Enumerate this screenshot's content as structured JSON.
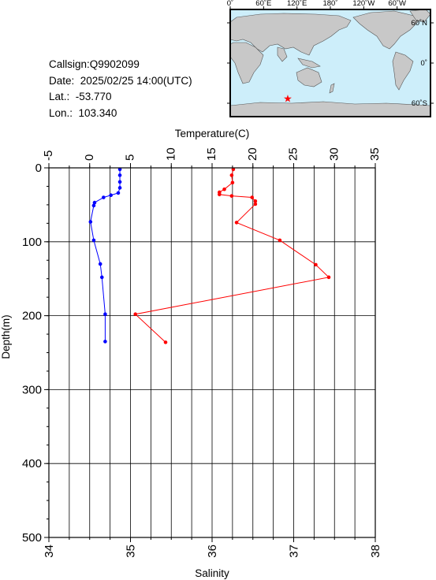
{
  "info": {
    "callsign": "Callsign:Q9902099",
    "date": "Date:  2025/02/25 14:00(UTC)",
    "lat": "Lat.:  -53.770",
    "lon": "Lon.:  103.340"
  },
  "map": {
    "lon_labels": [
      "0˚",
      "60˚E",
      "120˚E",
      "180˚",
      "120˚W",
      "60˚W"
    ],
    "lat_labels": [
      "60˚N",
      "0˚",
      "60˚S"
    ],
    "station": {
      "lat": -53.77,
      "lon": 103.34
    },
    "colors": {
      "ocean": "#cdeefa",
      "land": "#c8c8c8",
      "marker": "#ff0000"
    }
  },
  "chart_data": {
    "type": "line",
    "title": "",
    "xlabel_top": "Temperature(C)",
    "xlabel_bottom": "Salinity",
    "ylabel": "Depth(m)",
    "temperature_axis": {
      "range": [
        -5,
        35
      ],
      "ticks": [
        "-5",
        "0",
        "5",
        "10",
        "15",
        "20",
        "25",
        "30",
        "35"
      ]
    },
    "salinity_axis": {
      "range": [
        34,
        38
      ],
      "ticks": [
        "34",
        "35",
        "36",
        "37",
        "38"
      ]
    },
    "depth_axis": {
      "range": [
        0,
        500
      ],
      "reversed": true,
      "ticks": [
        "0",
        "100",
        "200",
        "300",
        "400",
        "500"
      ]
    },
    "grid": true,
    "series": [
      {
        "key": "temperature",
        "color": "#ff0000",
        "axis": "temperature",
        "points": [
          {
            "value": 17.6,
            "depth": 2
          },
          {
            "value": 17.4,
            "depth": 10
          },
          {
            "value": 17.5,
            "depth": 20
          },
          {
            "value": 16.5,
            "depth": 29
          },
          {
            "value": 15.9,
            "depth": 33
          },
          {
            "value": 15.9,
            "depth": 36
          },
          {
            "value": 17.4,
            "depth": 38
          },
          {
            "value": 19.9,
            "depth": 40
          },
          {
            "value": 20.3,
            "depth": 45
          },
          {
            "value": 20.3,
            "depth": 49
          },
          {
            "value": 18.0,
            "depth": 74
          },
          {
            "value": 23.3,
            "depth": 98
          },
          {
            "value": 27.7,
            "depth": 131
          },
          {
            "value": 29.3,
            "depth": 148
          },
          {
            "value": 5.6,
            "depth": 198
          },
          {
            "value": 9.3,
            "depth": 236
          }
        ]
      },
      {
        "key": "salinity",
        "color": "#0000ff",
        "axis": "salinity",
        "points": [
          {
            "value": 34.87,
            "depth": 2
          },
          {
            "value": 34.87,
            "depth": 10
          },
          {
            "value": 34.87,
            "depth": 19
          },
          {
            "value": 34.87,
            "depth": 27
          },
          {
            "value": 34.85,
            "depth": 34
          },
          {
            "value": 34.76,
            "depth": 37
          },
          {
            "value": 34.67,
            "depth": 40
          },
          {
            "value": 34.56,
            "depth": 47
          },
          {
            "value": 34.55,
            "depth": 51
          },
          {
            "value": 34.51,
            "depth": 73
          },
          {
            "value": 34.55,
            "depth": 98
          },
          {
            "value": 34.63,
            "depth": 130
          },
          {
            "value": 34.65,
            "depth": 148
          },
          {
            "value": 34.69,
            "depth": 198
          },
          {
            "value": 34.69,
            "depth": 235
          }
        ]
      }
    ]
  }
}
